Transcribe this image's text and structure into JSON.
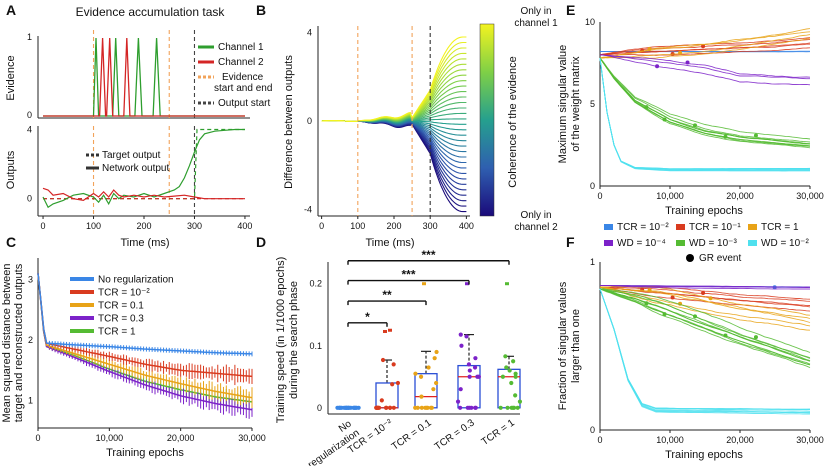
{
  "colors": {
    "blue": "#3a86e6",
    "red": "#d93b1f",
    "orange": "#e8a317",
    "purple": "#7c22c9",
    "green": "#55bb33",
    "cyan": "#4fe0ee",
    "dgreen": "#2e9e2e",
    "dred": "#d42525",
    "orange_dash": "#f2a35a",
    "gray": "#555555"
  },
  "panels": {
    "A": "A",
    "B": "B",
    "C": "C",
    "D": "D",
    "E": "E",
    "F": "F"
  },
  "panelA": {
    "title": "Evidence accumulation task",
    "top_ylabel": "Evidence",
    "bottom_ylabel": "Outputs",
    "xlabel": "Time (ms)",
    "legend": {
      "ch1": "Channel 1",
      "ch2": "Channel 2",
      "ev1": "Evidence",
      "ev2": "start and end",
      "out": "Output start"
    },
    "legend2": {
      "target": "Target output",
      "network": "Network output"
    }
  },
  "panelB": {
    "ylabel": "Difference between outputs",
    "xlabel": "Time (ms)",
    "cbar_label": "Coherence of the evidence",
    "cbar_top1": "Only in",
    "cbar_top2": "channel 1",
    "cbar_bot1": "Only in",
    "cbar_bot2": "channel 2"
  },
  "panelC": {
    "ylabel1": "Mean squared distance between",
    "ylabel2": "target and reconstructed outputs",
    "xlabel": "Training epochs",
    "legend": [
      "No regularization",
      "TCR = 10⁻²",
      "TCR = 0.1",
      "TCR = 0.3",
      "TCR = 1"
    ]
  },
  "panelD": {
    "ylabel1": "Training speed (in 1/1000 epochs)",
    "ylabel2": "during the search phase",
    "sig": [
      "*",
      "**",
      "***",
      "***"
    ],
    "cats": [
      "No",
      "regularization",
      "TCR = 10⁻²",
      "TCR = 0.1",
      "TCR = 0.3",
      "TCR = 1"
    ]
  },
  "panelE": {
    "ylabel1": "Maximum singular value",
    "ylabel2": "of the weight matrix",
    "xlabel": "Training epochs"
  },
  "panelF": {
    "ylabel1": "Fraction of singular values",
    "ylabel2": "larger than one",
    "xlabel": "Training epochs"
  },
  "legendEF": {
    "items": [
      "TCR = 10⁻²",
      "TCR = 10⁻¹",
      "TCR = 1",
      "WD = 10⁻⁴",
      "WD = 10⁻³",
      "WD = 10⁻²"
    ],
    "gr": "GR event"
  },
  "chart_data": [
    {
      "id": "A-top",
      "type": "line",
      "title": "Evidence accumulation task",
      "xlabel": "",
      "ylabel": "Evidence",
      "xlim": [
        -10,
        410
      ],
      "ylim": [
        0,
        1
      ],
      "yticks": [
        0,
        1
      ],
      "series": [
        {
          "name": "Channel 1",
          "color": "green",
          "pulses": [
            [
              100,
              110
            ],
            [
              138,
              150
            ],
            [
              182,
              196
            ],
            [
              218,
              232
            ]
          ]
        },
        {
          "name": "Channel 2",
          "color": "red",
          "pulses": [
            [
              112,
              124
            ],
            [
              126,
              138
            ],
            [
              160,
              172
            ]
          ]
        }
      ],
      "vlines": [
        {
          "x": 100,
          "label": "Evidence start and end"
        },
        {
          "x": 250,
          "label": "Evidence start and end"
        },
        {
          "x": 300,
          "label": "Output start"
        }
      ]
    },
    {
      "id": "A-bottom",
      "type": "line",
      "xlabel": "Time (ms)",
      "ylabel": "Outputs",
      "xlim": [
        -10,
        410
      ],
      "ylim": [
        -1,
        4.2
      ],
      "xticks": [
        0,
        100,
        200,
        300,
        400
      ],
      "yticks": [
        0,
        4
      ],
      "series": [
        {
          "name": "Target output ch1",
          "dash": true,
          "color": "dgreen",
          "x": [
            0,
            300,
            305,
            400
          ],
          "y": [
            0,
            0,
            4,
            4
          ]
        },
        {
          "name": "Target output ch2",
          "dash": true,
          "color": "dred",
          "x": [
            0,
            400
          ],
          "y": [
            0,
            0
          ]
        },
        {
          "name": "Network output ch1",
          "color": "dgreen",
          "x": [
            0,
            10,
            20,
            40,
            60,
            80,
            100,
            110,
            120,
            130,
            140,
            150,
            160,
            180,
            200,
            220,
            240,
            260,
            270,
            280,
            290,
            300,
            310,
            320,
            340,
            360,
            380,
            400
          ],
          "y": [
            0.1,
            -0.5,
            -0.3,
            -0.1,
            0.2,
            0.3,
            0.1,
            -0.2,
            0.2,
            -0.3,
            0.3,
            0.0,
            0.2,
            0.1,
            0.3,
            0.1,
            0.3,
            0.5,
            0.7,
            1.2,
            1.9,
            2.7,
            3.4,
            3.75,
            3.9,
            3.95,
            4.0,
            4.0
          ]
        },
        {
          "name": "Network output ch2",
          "color": "dred",
          "x": [
            0,
            10,
            20,
            40,
            60,
            80,
            100,
            110,
            120,
            130,
            140,
            150,
            160,
            180,
            200,
            220,
            240,
            260,
            280,
            300,
            320,
            340,
            400
          ],
          "y": [
            0.6,
            0.5,
            0.2,
            0.3,
            0.0,
            -0.1,
            0.3,
            0.1,
            0.4,
            0.1,
            0.5,
            0.2,
            0.1,
            0.2,
            0.1,
            0.2,
            0.1,
            0.15,
            0.2,
            0.1,
            0.0,
            0.0,
            0.0
          ]
        }
      ]
    },
    {
      "id": "B",
      "type": "line",
      "xlabel": "Time (ms)",
      "ylabel": "Difference between outputs",
      "xlim": [
        -10,
        410
      ],
      "ylim": [
        -4.3,
        4.3
      ],
      "xticks": [
        0,
        100,
        200,
        300,
        400
      ],
      "yticks": [
        -4,
        0,
        4
      ],
      "n_curves": 33,
      "final_range": [
        -4.1,
        3.8
      ],
      "vlines": [
        100,
        250,
        300
      ],
      "colorbar": {
        "low": "Only in channel 2",
        "high": "Only in channel 1"
      }
    },
    {
      "id": "C",
      "type": "line",
      "xlabel": "Training epochs",
      "ylabel": "Mean squared distance between target and reconstructed outputs",
      "xlim": [
        0,
        30000
      ],
      "ylim": [
        0.55,
        3.35
      ],
      "xticks": [
        0,
        10000,
        20000,
        30000
      ],
      "yticks": [
        1,
        2,
        3
      ],
      "series": [
        {
          "name": "No regularization",
          "color": "blue",
          "x": [
            0,
            1000,
            5000,
            10000,
            15000,
            20000,
            25000,
            30000
          ],
          "y": [
            3.1,
            1.95,
            1.92,
            1.89,
            1.85,
            1.82,
            1.79,
            1.77
          ]
        },
        {
          "name": "TCR = 10⁻²",
          "color": "red",
          "x": [
            0,
            1000,
            5000,
            10000,
            15000,
            20000,
            25000,
            30000
          ],
          "y": [
            3.1,
            1.95,
            1.85,
            1.73,
            1.6,
            1.5,
            1.45,
            1.4
          ]
        },
        {
          "name": "TCR = 0.1",
          "color": "orange",
          "x": [
            0,
            1000,
            5000,
            10000,
            15000,
            20000,
            25000,
            30000
          ],
          "y": [
            3.1,
            1.92,
            1.78,
            1.6,
            1.42,
            1.28,
            1.15,
            1.05
          ]
        },
        {
          "name": "TCR = 0.3",
          "color": "purple",
          "x": [
            0,
            1000,
            5000,
            10000,
            15000,
            20000,
            25000,
            30000
          ],
          "y": [
            3.1,
            1.9,
            1.72,
            1.48,
            1.26,
            1.08,
            0.95,
            0.85
          ]
        },
        {
          "name": "TCR = 1",
          "color": "green",
          "x": [
            0,
            1000,
            5000,
            10000,
            15000,
            20000,
            25000,
            30000
          ],
          "y": [
            3.1,
            1.9,
            1.75,
            1.52,
            1.32,
            1.18,
            1.06,
            0.98
          ]
        }
      ]
    },
    {
      "id": "D",
      "type": "box",
      "ylabel": "Training speed (in 1/1000 epochs) during the search phase",
      "ylim": [
        -0.01,
        0.235
      ],
      "yticks": [
        0,
        0.1,
        0.2
      ],
      "categories": [
        "No regularization",
        "TCR = 10⁻²",
        "TCR = 0.1",
        "TCR = 0.3",
        "TCR = 1"
      ],
      "boxes": [
        {
          "color": "blue",
          "q1": 0,
          "median": 0,
          "q3": 0,
          "whisk_lo": 0,
          "whisk_hi": 0,
          "points": [
            0,
            0,
            0,
            0,
            0,
            0,
            0,
            0,
            0,
            0,
            0,
            0,
            0,
            0,
            0,
            0,
            0,
            0,
            0,
            0
          ],
          "outliers": []
        },
        {
          "color": "red",
          "q1": 0,
          "median": 0,
          "q3": 0.04,
          "whisk_lo": 0,
          "whisk_hi": 0.077,
          "points": [
            0,
            0,
            0,
            0,
            0,
            0,
            0,
            0,
            0,
            0,
            0,
            0,
            0.012,
            0.038,
            0.04,
            0.07,
            0.077
          ],
          "outliers": [
            0.123,
            0.125
          ]
        },
        {
          "color": "orange",
          "q1": 0,
          "median": 0.018,
          "q3": 0.055,
          "whisk_lo": 0,
          "whisk_hi": 0.091,
          "points": [
            0,
            0,
            0,
            0,
            0,
            0,
            0,
            0,
            0.018,
            0.03,
            0.04,
            0.05,
            0.055,
            0.065,
            0.08,
            0.09
          ],
          "outliers": [
            0.2
          ]
        },
        {
          "color": "purple",
          "q1": 0,
          "median": 0.05,
          "q3": 0.068,
          "whisk_lo": 0,
          "whisk_hi": 0.118,
          "points": [
            0,
            0,
            0,
            0,
            0,
            0,
            0.01,
            0.03,
            0.05,
            0.05,
            0.05,
            0.06,
            0.065,
            0.07,
            0.08,
            0.1,
            0.115,
            0.118
          ],
          "outliers": [
            0.2
          ]
        },
        {
          "color": "green",
          "q1": 0,
          "median": 0.05,
          "q3": 0.062,
          "whisk_lo": 0,
          "whisk_hi": 0.083,
          "points": [
            0,
            0,
            0,
            0,
            0,
            0,
            0.01,
            0.02,
            0.04,
            0.05,
            0.05,
            0.055,
            0.06,
            0.065,
            0.075,
            0.083
          ],
          "outliers": [
            0.2
          ]
        }
      ],
      "significance": [
        {
          "from": 0,
          "to": 1,
          "label": "*"
        },
        {
          "from": 0,
          "to": 2,
          "label": "**"
        },
        {
          "from": 0,
          "to": 3,
          "label": "***"
        },
        {
          "from": 0,
          "to": 4,
          "label": "***"
        }
      ]
    },
    {
      "id": "E",
      "type": "line",
      "xlabel": "Training epochs",
      "ylabel": "Maximum singular value of the weight matrix",
      "xlim": [
        0,
        30000
      ],
      "ylim": [
        0,
        10
      ],
      "xticks": [
        0,
        10000,
        20000,
        30000
      ],
      "yticks": [
        0,
        5,
        10
      ],
      "series": [
        {
          "name": "TCR = 10⁻²",
          "color": "blue",
          "x": [
            0,
            30000
          ],
          "y": [
            8.2,
            8.2
          ]
        },
        {
          "name": "TCR = 10⁻¹",
          "color": "red",
          "x": [
            0,
            5000,
            10000,
            15000,
            20000,
            25000,
            30000
          ],
          "y": [
            8.0,
            8.2,
            8.3,
            8.4,
            8.5,
            8.6,
            8.8
          ]
        },
        {
          "name": "TCR = 1",
          "color": "orange",
          "x": [
            0,
            5000,
            10000,
            15000,
            20000,
            25000,
            30000
          ],
          "y": [
            7.8,
            8.0,
            8.2,
            8.4,
            8.7,
            9.0,
            9.4
          ]
        },
        {
          "name": "WD = 10⁻⁴",
          "color": "purple",
          "x": [
            0,
            5000,
            10000,
            15000,
            20000,
            25000,
            30000
          ],
          "y": [
            8.0,
            7.8,
            7.6,
            7.3,
            6.8,
            6.7,
            6.6
          ]
        },
        {
          "name": "WD = 10⁻³",
          "color": "green",
          "x": [
            0,
            2000,
            5000,
            10000,
            15000,
            20000,
            25000,
            30000
          ],
          "y": [
            7.8,
            6.6,
            5.2,
            4.0,
            3.3,
            2.9,
            2.7,
            2.5
          ]
        },
        {
          "name": "WD = 10⁻²",
          "color": "cyan",
          "x": [
            0,
            1000,
            2000,
            3000,
            5000,
            10000,
            30000
          ],
          "y": [
            7.8,
            4.5,
            2.5,
            1.5,
            1.1,
            1.0,
            1.0
          ]
        }
      ]
    },
    {
      "id": "F",
      "type": "line",
      "xlabel": "Training epochs",
      "ylabel": "Fraction of singular values larger than one",
      "xlim": [
        0,
        30000
      ],
      "ylim": [
        0,
        1
      ],
      "xticks": [
        0,
        10000,
        20000,
        30000
      ],
      "yticks": [
        0,
        1
      ],
      "series": [
        {
          "name": "TCR = 10⁻²",
          "color": "blue",
          "x": [
            0,
            30000
          ],
          "y": [
            0.86,
            0.85
          ]
        },
        {
          "name": "TCR = 10⁻¹",
          "color": "red",
          "x": [
            0,
            10000,
            20000,
            30000
          ],
          "y": [
            0.85,
            0.82,
            0.78,
            0.75
          ]
        },
        {
          "name": "TCR = 1",
          "color": "orange",
          "x": [
            0,
            10000,
            20000,
            30000
          ],
          "y": [
            0.85,
            0.78,
            0.7,
            0.64
          ]
        },
        {
          "name": "WD = 10⁻⁴",
          "color": "purple",
          "x": [
            0,
            30000
          ],
          "y": [
            0.86,
            0.85
          ]
        },
        {
          "name": "WD = 10⁻³",
          "color": "green",
          "x": [
            0,
            5000,
            10000,
            15000,
            20000,
            25000,
            30000
          ],
          "y": [
            0.84,
            0.78,
            0.7,
            0.62,
            0.54,
            0.47,
            0.4
          ]
        },
        {
          "name": "WD = 10⁻²",
          "color": "cyan",
          "x": [
            0,
            2000,
            4000,
            6000,
            8000,
            30000
          ],
          "y": [
            0.84,
            0.6,
            0.3,
            0.15,
            0.12,
            0.11
          ]
        }
      ]
    }
  ]
}
